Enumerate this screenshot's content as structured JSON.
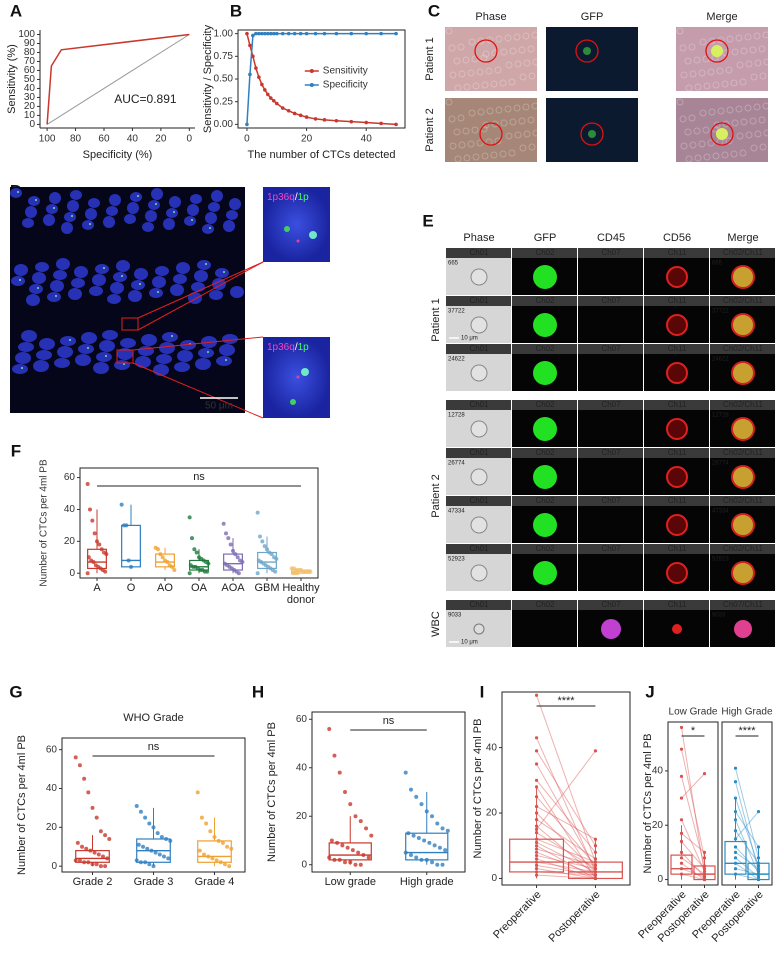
{
  "chart_data": [
    {
      "panel": "A",
      "type": "line",
      "frame": "open",
      "x": [
        100,
        97,
        90,
        0
      ],
      "values": [
        0,
        65,
        83,
        100
      ],
      "color": "#c8382c",
      "xlim": [
        105,
        -4
      ],
      "ylim": [
        -4,
        105
      ],
      "xticks": [
        100,
        80,
        60,
        40,
        20,
        0
      ],
      "yticks": [
        0,
        10,
        20,
        30,
        40,
        50,
        60,
        70,
        80,
        90,
        100
      ],
      "xlabel": "Specificity (%)",
      "ylabel": "Sensitivity (%)",
      "annotation": "AUC=0.891",
      "diagonal_color": "#9a9a9a"
    },
    {
      "panel": "B",
      "type": "line",
      "frame": "box",
      "markers": true,
      "legend": "right",
      "x": [
        0,
        1,
        2,
        3,
        4,
        5,
        6,
        7,
        8,
        9,
        10,
        12,
        14,
        16,
        18,
        20,
        23,
        26,
        30,
        35,
        40,
        45,
        50
      ],
      "series": [
        {
          "name": "Sensitivity",
          "color": "#c8382c",
          "values": [
            1.0,
            0.87,
            0.75,
            0.62,
            0.52,
            0.44,
            0.38,
            0.33,
            0.29,
            0.26,
            0.23,
            0.18,
            0.15,
            0.12,
            0.1,
            0.08,
            0.06,
            0.05,
            0.04,
            0.03,
            0.02,
            0.01,
            0.0
          ]
        },
        {
          "name": "Specificity",
          "color": "#2f7fc1",
          "values": [
            0,
            0.55,
            0.98,
            1,
            1,
            1,
            1,
            1,
            1,
            1,
            1,
            1,
            1,
            1,
            1,
            1,
            1,
            1,
            1,
            1,
            1,
            1,
            1
          ]
        }
      ],
      "xlim": [
        -3,
        53
      ],
      "ylim": [
        -0.04,
        1.04
      ],
      "xticks": [
        0,
        20,
        40
      ],
      "yticks": [
        {
          "value": 0,
          "label": "0.00"
        },
        0.25,
        {
          "value": 0.5,
          "label": "0.50"
        },
        0.75,
        {
          "value": 1,
          "label": "1.00"
        }
      ],
      "xlabel": "The number of CTCs detected",
      "ylabel": "Sensitivity / Specificity"
    },
    {
      "panel": "F",
      "type": "box",
      "categories": [
        "A",
        "O",
        "AO",
        "OA",
        "AOA",
        "GBM",
        "Healthy donor"
      ],
      "ylabel": "Number of CTCs per 4ml PB",
      "annotation": "ns",
      "ylim": [
        -3,
        66
      ],
      "yticks": [
        0,
        20,
        40,
        60
      ],
      "boxes": [
        {
          "color": "#c8382c",
          "min": 0,
          "q1": 3,
          "median": 7,
          "q3": 15,
          "max": 40,
          "points": [
            56,
            40,
            33,
            25,
            20,
            18,
            15,
            13,
            12,
            10,
            8,
            7,
            5,
            4,
            3,
            2,
            1,
            0
          ]
        },
        {
          "color": "#2f7fc1",
          "min": 3,
          "q1": 4,
          "median": 8,
          "q3": 30,
          "max": 43,
          "points": [
            43,
            30,
            30,
            8,
            4
          ]
        },
        {
          "color": "#f0a030",
          "min": 2,
          "q1": 4,
          "median": 7,
          "q3": 12,
          "max": 16,
          "points": [
            16,
            15,
            12,
            10,
            8,
            7,
            5,
            4,
            2
          ]
        },
        {
          "color": "#1e7a3c",
          "min": 0,
          "q1": 2,
          "median": 4,
          "q3": 8,
          "max": 15,
          "points": [
            35,
            22,
            15,
            13,
            10,
            9,
            8,
            7,
            6,
            5,
            4,
            4,
            3,
            2,
            2,
            1,
            1,
            0
          ]
        },
        {
          "color": "#7d6bb3",
          "min": 0,
          "q1": 2,
          "median": 6,
          "q3": 12,
          "max": 22,
          "points": [
            31,
            25,
            22,
            18,
            14,
            12,
            10,
            8,
            7,
            6,
            5,
            4,
            3,
            2,
            1,
            0
          ]
        },
        {
          "color": "#6ea6c9",
          "min": 0,
          "q1": 3,
          "median": 7,
          "q3": 13,
          "max": 23,
          "points": [
            38,
            23,
            20,
            17,
            15,
            13,
            12,
            10,
            9,
            8,
            7,
            6,
            5,
            4,
            3,
            2,
            1,
            0
          ]
        },
        {
          "color": "#f2c06e",
          "min": 0,
          "q1": 0,
          "median": 1,
          "q3": 2,
          "max": 3,
          "points": [
            3,
            3,
            2,
            2,
            2,
            1,
            1,
            1,
            1,
            0,
            0,
            0
          ]
        }
      ]
    },
    {
      "panel": "G",
      "type": "box",
      "title": "WHO Grade",
      "categories": [
        "Grade 2",
        "Grade 3",
        "Grade 4"
      ],
      "ylabel": "Number of CTCs per 4ml PB",
      "annotation": "ns",
      "ylim": [
        -3,
        66
      ],
      "yticks": [
        0,
        20,
        40,
        60
      ],
      "boxes": [
        {
          "color": "#c8382c",
          "min": 0,
          "q1": 2,
          "median": 4,
          "q3": 8,
          "max": 16,
          "points": [
            56,
            52,
            45,
            38,
            30,
            25,
            18,
            16,
            14,
            12,
            10,
            9,
            8,
            7,
            6,
            5,
            4,
            3,
            3,
            2,
            2,
            1,
            1,
            0,
            0
          ]
        },
        {
          "color": "#2f7fc1",
          "min": 0,
          "q1": 2,
          "median": 8,
          "q3": 14,
          "max": 30,
          "points": [
            31,
            28,
            25,
            22,
            20,
            17,
            15,
            14,
            13,
            11,
            10,
            9,
            8,
            7,
            6,
            5,
            4,
            3,
            2,
            2,
            1,
            0
          ]
        },
        {
          "color": "#f0a030",
          "min": 0,
          "q1": 2,
          "median": 5,
          "q3": 13,
          "max": 25,
          "points": [
            38,
            25,
            22,
            18,
            15,
            13,
            12,
            10,
            9,
            8,
            6,
            5,
            4,
            3,
            2,
            1,
            0
          ]
        }
      ]
    },
    {
      "panel": "H",
      "type": "box",
      "categories": [
        "Low grade",
        "High grade"
      ],
      "ylabel": "Number of CTCs per 4ml PB",
      "annotation": "ns",
      "ylim": [
        -3,
        63
      ],
      "yticks": [
        0,
        20,
        40,
        60
      ],
      "boxes": [
        {
          "color": "#c8382c",
          "min": 0,
          "q1": 2,
          "median": 4,
          "q3": 9,
          "max": 20,
          "points": [
            56,
            45,
            38,
            30,
            25,
            20,
            18,
            15,
            12,
            10,
            9,
            8,
            7,
            6,
            5,
            4,
            3,
            3,
            2,
            2,
            1,
            1,
            0,
            0
          ]
        },
        {
          "color": "#2f7fc1",
          "min": 0,
          "q1": 2,
          "median": 5,
          "q3": 13,
          "max": 30,
          "points": [
            38,
            31,
            28,
            25,
            22,
            20,
            17,
            15,
            14,
            13,
            12,
            11,
            10,
            9,
            8,
            7,
            6,
            5,
            4,
            3,
            2,
            2,
            1,
            0,
            0
          ]
        }
      ]
    },
    {
      "panel": "I",
      "type": "paired",
      "categories": [
        "Preoperative",
        "Postoperative"
      ],
      "ylabel": "Number of CTCs per 4ml PB",
      "annotation": "****",
      "color": "#d9534f",
      "ylim": [
        -2,
        57
      ],
      "yticks": [
        0,
        20,
        40
      ],
      "pairs": [
        [
          56,
          5
        ],
        [
          43,
          2
        ],
        [
          39,
          10
        ],
        [
          35,
          3
        ],
        [
          30,
          8
        ],
        [
          28,
          0
        ],
        [
          25,
          4
        ],
        [
          22,
          12
        ],
        [
          20,
          2
        ],
        [
          18,
          6
        ],
        [
          16,
          1
        ],
        [
          15,
          39
        ],
        [
          14,
          3
        ],
        [
          12,
          5
        ],
        [
          11,
          2
        ],
        [
          10,
          0
        ],
        [
          9,
          4
        ],
        [
          8,
          1
        ],
        [
          7,
          3
        ],
        [
          6,
          0
        ],
        [
          5,
          2
        ],
        [
          4,
          1
        ],
        [
          3,
          0
        ],
        [
          2,
          1
        ],
        [
          1,
          0
        ]
      ],
      "boxes": [
        {
          "min": 0,
          "q1": 2,
          "median": 5,
          "q3": 12,
          "max": 28
        },
        {
          "min": 0,
          "q1": 0,
          "median": 2,
          "q3": 5,
          "max": 12
        }
      ]
    },
    {
      "panel": "J",
      "type": "paired",
      "categories": [
        "Preoperative",
        "Postoperative"
      ],
      "ylabel": "Number of CTCs per 4ml PB",
      "ylim": [
        -2,
        58
      ],
      "yticks": [
        0,
        20,
        40
      ],
      "facets": [
        {
          "title": "Low Grade",
          "color": "#d9534f",
          "annotation": "*",
          "pairs": [
            [
              56,
              2
            ],
            [
              48,
              8
            ],
            [
              38,
              5
            ],
            [
              30,
              39
            ],
            [
              22,
              3
            ],
            [
              17,
              10
            ],
            [
              14,
              4
            ],
            [
              10,
              1
            ],
            [
              8,
              2
            ],
            [
              6,
              0
            ],
            [
              4,
              1
            ],
            [
              2,
              0
            ]
          ],
          "boxes": [
            {
              "min": 0,
              "q1": 2,
              "median": 4,
              "q3": 9,
              "max": 20
            },
            {
              "min": 0,
              "q1": 0,
              "median": 2,
              "q3": 5,
              "max": 10
            }
          ]
        },
        {
          "title": "High Grade",
          "color": "#2b8cc4",
          "annotation": "****",
          "pairs": [
            [
              41,
              8
            ],
            [
              36,
              3
            ],
            [
              30,
              5
            ],
            [
              25,
              12
            ],
            [
              22,
              2
            ],
            [
              18,
              6
            ],
            [
              15,
              25
            ],
            [
              12,
              3
            ],
            [
              10,
              4
            ],
            [
              8,
              1
            ],
            [
              6,
              0
            ],
            [
              4,
              2
            ],
            [
              2,
              0
            ]
          ],
          "boxes": [
            {
              "min": 0,
              "q1": 2,
              "median": 6,
              "q3": 14,
              "max": 30
            },
            {
              "min": 0,
              "q1": 0,
              "median": 2,
              "q3": 6,
              "max": 12
            }
          ]
        }
      ]
    }
  ],
  "figures": {
    "C": {
      "panel": "C",
      "columns": [
        "Phase",
        "GFP",
        "Merge"
      ],
      "rows": [
        "Patient 1",
        "Patient 2"
      ]
    },
    "D": {
      "panel": "D",
      "probe_1": "1p36q",
      "separator": "/",
      "probe_2": "1p",
      "scale_bar": "50 μm"
    },
    "E": {
      "panel": "E",
      "columns": [
        "Phase",
        "GFP",
        "CD45",
        "CD56",
        "Merge"
      ],
      "column_colors": [
        "#222222",
        "#22aa22",
        "#8b2c8b",
        "#cc2222",
        "#222222"
      ],
      "channels": [
        "Ch01",
        "Ch02",
        "Ch07",
        "Ch11"
      ],
      "scale_bar": "10 μm",
      "groups": [
        {
          "label": "Patient 1",
          "merge_channel": "Ch02/Ch11",
          "ids": [
            "665",
            "37722",
            "24622"
          ]
        },
        {
          "label": "Patient 2",
          "merge_channel": "Ch02/Ch11",
          "ids": [
            "12728",
            "26774",
            "47334",
            "52923"
          ]
        },
        {
          "label": "WBC",
          "merge_channel": "Ch07/Ch11",
          "ids": [
            "9033"
          ]
        }
      ]
    }
  }
}
